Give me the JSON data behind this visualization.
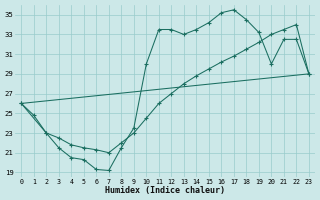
{
  "xlabel": "Humidex (Indice chaleur)",
  "bg_color": "#cce8e8",
  "line_color": "#1a6e60",
  "grid_color": "#99cccc",
  "xlim": [
    -0.5,
    23.5
  ],
  "ylim": [
    18.5,
    36.0
  ],
  "xticks": [
    0,
    1,
    2,
    3,
    4,
    5,
    6,
    7,
    8,
    9,
    10,
    11,
    12,
    13,
    14,
    15,
    16,
    17,
    18,
    19,
    20,
    21,
    22,
    23
  ],
  "yticks": [
    19,
    21,
    23,
    25,
    27,
    29,
    31,
    33,
    35
  ],
  "series1_x": [
    0,
    1,
    2,
    3,
    4,
    5,
    6,
    7,
    8,
    9,
    10,
    11,
    12,
    13,
    14,
    15,
    16,
    17,
    18,
    19,
    20,
    21,
    22,
    23
  ],
  "series1_y": [
    26.0,
    24.8,
    23.0,
    21.5,
    20.5,
    20.3,
    19.3,
    19.2,
    21.5,
    23.5,
    30.0,
    33.5,
    33.5,
    33.0,
    33.5,
    34.2,
    35.2,
    35.5,
    34.5,
    33.2,
    30.0,
    32.5,
    32.5,
    29.0
  ],
  "series2_x": [
    0,
    2,
    3,
    4,
    5,
    6,
    7,
    8,
    9,
    10,
    11,
    12,
    13,
    14,
    15,
    16,
    17,
    18,
    19,
    20,
    21,
    22,
    23
  ],
  "series2_y": [
    26.0,
    23.0,
    22.5,
    21.8,
    21.5,
    21.3,
    21.0,
    22.0,
    23.0,
    24.5,
    26.0,
    27.0,
    28.0,
    28.8,
    29.5,
    30.2,
    30.8,
    31.5,
    32.2,
    33.0,
    33.5,
    34.0,
    29.0
  ],
  "series3_x": [
    0,
    23
  ],
  "series3_y": [
    26.0,
    29.0
  ]
}
